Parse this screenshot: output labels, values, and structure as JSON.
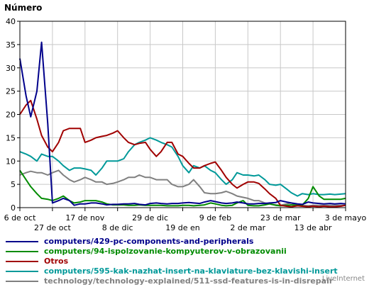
{
  "chart_data": {
    "type": "line",
    "ylabel": "Número",
    "ylim": [
      0,
      40
    ],
    "yticks": [
      0,
      5,
      10,
      15,
      20,
      25,
      30,
      35,
      40
    ],
    "xlim": [
      "2019-10-06",
      "2020-05-03"
    ],
    "xticks_top": [
      {
        "x": "2019-10-06",
        "label": "6 de oct"
      },
      {
        "x": "2019-11-17",
        "label": "17 de nov"
      },
      {
        "x": "2019-12-29",
        "label": "29 de dic"
      },
      {
        "x": "2020-02-09",
        "label": "9 de feb"
      },
      {
        "x": "2020-03-22",
        "label": "23 de mar"
      },
      {
        "x": "2020-05-03",
        "label": "3 de mayo"
      }
    ],
    "xticks_bottom": [
      {
        "x": "2019-10-27",
        "label": "27 de oct"
      },
      {
        "x": "2019-12-08",
        "label": "8 de dic"
      },
      {
        "x": "2020-01-19",
        "label": "19 de en"
      },
      {
        "x": "2020-03-01",
        "label": "2 de mar"
      },
      {
        "x": "2020-04-12",
        "label": "13 de abr"
      }
    ],
    "grid": true,
    "legend_position": "bottom",
    "x": [
      "2019-10-06",
      "2019-10-10",
      "2019-10-13",
      "2019-10-17",
      "2019-10-20",
      "2019-10-24",
      "2019-10-27",
      "2019-10-31",
      "2019-11-03",
      "2019-11-07",
      "2019-11-10",
      "2019-11-14",
      "2019-11-17",
      "2019-11-21",
      "2019-11-24",
      "2019-11-28",
      "2019-12-01",
      "2019-12-05",
      "2019-12-08",
      "2019-12-12",
      "2019-12-15",
      "2019-12-19",
      "2019-12-22",
      "2019-12-26",
      "2019-12-29",
      "2020-01-02",
      "2020-01-05",
      "2020-01-09",
      "2020-01-12",
      "2020-01-16",
      "2020-01-19",
      "2020-01-23",
      "2020-01-26",
      "2020-01-30",
      "2020-02-02",
      "2020-02-06",
      "2020-02-09",
      "2020-02-13",
      "2020-02-16",
      "2020-02-20",
      "2020-02-23",
      "2020-02-27",
      "2020-03-01",
      "2020-03-05",
      "2020-03-08",
      "2020-03-12",
      "2020-03-15",
      "2020-03-19",
      "2020-03-22",
      "2020-03-26",
      "2020-03-29",
      "2020-04-02",
      "2020-04-05",
      "2020-04-09",
      "2020-04-12",
      "2020-04-16",
      "2020-04-19",
      "2020-04-23",
      "2020-04-26",
      "2020-04-30",
      "2020-05-03"
    ],
    "series": [
      {
        "name": "computers/429-pc-components-and-peripherals",
        "color": "#00008b",
        "values": [
          32,
          24,
          19.5,
          25,
          35.5,
          18,
          1,
          1.5,
          2,
          1.5,
          0.5,
          0.8,
          0.8,
          1,
          1,
          0.8,
          0.6,
          0.7,
          0.7,
          0.8,
          0.8,
          0.9,
          0.7,
          0.6,
          0.9,
          1,
          0.9,
          0.8,
          0.9,
          0.9,
          1,
          1.1,
          1,
          0.9,
          1.2,
          1.5,
          1.3,
          1,
          0.9,
          1,
          1.2,
          1,
          0.8,
          0.8,
          0.9,
          0.9,
          1,
          1.1,
          1.5,
          1.2,
          1,
          0.8,
          0.7,
          1.2,
          1,
          0.9,
          0.8,
          0.9,
          0.8,
          0.9,
          0.8
        ]
      },
      {
        "name": "computers/94-ispolzovanie-kompyuterov-v-obrazovanii",
        "color": "#008b00",
        "values": [
          8,
          6,
          4.5,
          3,
          2,
          1.8,
          1.5,
          2,
          2.5,
          1.5,
          1,
          1.2,
          1.5,
          1.5,
          1.5,
          1.2,
          0.8,
          0.6,
          0.6,
          0.6,
          0.5,
          0.5,
          0.6,
          0.5,
          0.5,
          0.5,
          0.5,
          0.4,
          0.4,
          0.4,
          0.5,
          0.5,
          0.4,
          0.5,
          0.6,
          1,
          0.8,
          0.5,
          0.4,
          0.5,
          1,
          1.5,
          0.5,
          0.4,
          0.4,
          0.6,
          0.8,
          0.5,
          0.4,
          0.5,
          0.6,
          0.5,
          0.5,
          2,
          4.5,
          2.5,
          1.8,
          1.8,
          1.8,
          1.8,
          2
        ]
      },
      {
        "name": "Otros",
        "color": "#a00000",
        "values": [
          20,
          22,
          23,
          19,
          15.5,
          13,
          12,
          14,
          16.5,
          17,
          17,
          17,
          14,
          14.5,
          15,
          15.3,
          15.5,
          16,
          16.5,
          15,
          14,
          13.5,
          13.8,
          14,
          12.5,
          11,
          12,
          14,
          14,
          11.5,
          11,
          9.5,
          8.5,
          8.5,
          9,
          9.5,
          9.8,
          8,
          6.5,
          5,
          4.2,
          5,
          5.5,
          5.5,
          5.2,
          4,
          3,
          2,
          0.5,
          0.3,
          0.2,
          0.4,
          0.3,
          0.2,
          0.3,
          0.2,
          0.3,
          0.2,
          0.2,
          0.3,
          0.5
        ]
      },
      {
        "name": "computers/595-kak-nazhat-insert-na-klaviature-bez-klavishi-insert",
        "color": "#009999",
        "values": [
          12,
          11.5,
          11,
          10,
          11.5,
          11,
          11,
          10,
          9,
          8,
          8.5,
          8.5,
          8.3,
          8,
          7,
          8.5,
          10,
          10,
          10,
          10.5,
          12,
          13.5,
          14,
          14.5,
          15,
          14.5,
          14,
          13.5,
          13,
          11,
          9,
          7.5,
          9,
          8.5,
          9,
          8,
          7.5,
          6,
          5,
          6,
          7.5,
          7,
          7,
          6.8,
          7,
          6,
          5,
          4.8,
          5,
          4,
          3.2,
          2.5,
          3,
          2.8,
          3,
          2.8,
          2.8,
          2.9,
          2.8,
          2.9,
          3
        ]
      },
      {
        "name": "technology/technology-explained/511-ssd-features-is-in-disrepair",
        "color": "#808080",
        "values": [
          7,
          7.5,
          7.8,
          7.5,
          7.5,
          7,
          7.5,
          8,
          7,
          6,
          5.5,
          6,
          6.5,
          6,
          5.5,
          5.5,
          5,
          5.2,
          5.5,
          6,
          6.5,
          6.5,
          7,
          6.5,
          6.5,
          6,
          6,
          6,
          5,
          4.5,
          4.5,
          5,
          6,
          4.5,
          3.2,
          3,
          3,
          3.2,
          3.5,
          3,
          2.5,
          2.2,
          2,
          1.5,
          1.5,
          1,
          0.8,
          0.6,
          0.5,
          0.8,
          1,
          0.5,
          0.5,
          0.4,
          0.5,
          0.5,
          0.5,
          0.5,
          0.5,
          0.5,
          0.5
        ]
      }
    ]
  },
  "watermark": "LiveInternet"
}
